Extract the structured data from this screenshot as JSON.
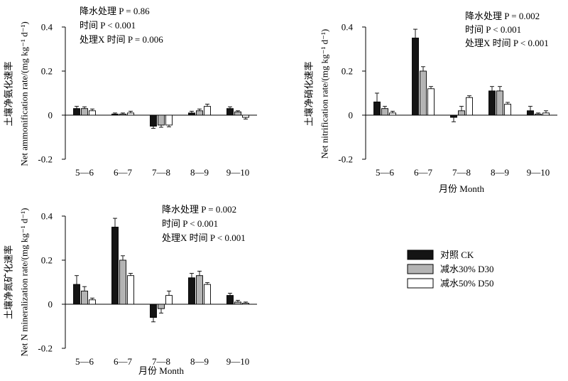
{
  "colors": {
    "ck": "#141414",
    "d30": "#b4b4b4",
    "d50": "#ffffff",
    "axis": "#000000"
  },
  "legend": [
    {
      "series": "ck",
      "label": "对照 CK"
    },
    {
      "series": "d30",
      "label": "减水30%  D30"
    },
    {
      "series": "d50",
      "label": "减水50%  D50"
    }
  ],
  "chart_data": [
    {
      "type": "bar",
      "ylabel": "土壤净氨化速率",
      "ylabel2": "Net ammonification rate/(mg kg⁻¹ d⁻¹)",
      "xlabel": "",
      "ylim": [
        -0.2,
        0.4
      ],
      "yticks": [
        "0.4",
        "0.2",
        "0",
        "-0.2"
      ],
      "categories": [
        "5—6",
        "6—7",
        "7—8",
        "8—9",
        "9—10"
      ],
      "series": [
        {
          "key": "ck",
          "values": [
            0.03,
            0.005,
            -0.05,
            0.01,
            0.03
          ],
          "errors": [
            0.01,
            0.005,
            0.01,
            0.008,
            0.008
          ]
        },
        {
          "key": "d30",
          "values": [
            0.03,
            0.005,
            -0.045,
            0.02,
            0.015
          ],
          "errors": [
            0.008,
            0.005,
            0.01,
            0.008,
            0.005
          ]
        },
        {
          "key": "d50",
          "values": [
            0.02,
            0.01,
            -0.045,
            0.04,
            -0.01
          ],
          "errors": [
            0.008,
            0.008,
            0.008,
            0.01,
            0.008
          ]
        }
      ],
      "annotations": [
        "降水处理 P = 0.86",
        "时间  P < 0.001",
        "处理X 时间  P = 0.006"
      ]
    },
    {
      "type": "bar",
      "ylabel": "土壤净硝化速率",
      "ylabel2": "Net nitrification rate/(mg kg⁻¹ d⁻¹)",
      "xlabel": "月份 Month",
      "ylim": [
        -0.2,
        0.4
      ],
      "yticks": [
        "0.4",
        "0.2",
        "0",
        "-0.2"
      ],
      "categories": [
        "5—6",
        "6—7",
        "7—8",
        "8—9",
        "9—10"
      ],
      "series": [
        {
          "key": "ck",
          "values": [
            0.06,
            0.35,
            -0.01,
            0.11,
            0.02
          ],
          "errors": [
            0.04,
            0.04,
            0.02,
            0.02,
            0.02
          ]
        },
        {
          "key": "d30",
          "values": [
            0.03,
            0.2,
            0.02,
            0.11,
            0.005
          ],
          "errors": [
            0.01,
            0.02,
            0.02,
            0.02,
            0.005
          ]
        },
        {
          "key": "d50",
          "values": [
            0.01,
            0.12,
            0.08,
            0.05,
            0.01
          ],
          "errors": [
            0.008,
            0.01,
            0.008,
            0.008,
            0.01
          ]
        }
      ],
      "annotations": [
        "降水处理 P = 0.002",
        "时间  P < 0.001",
        "处理X 时间  P < 0.001"
      ]
    },
    {
      "type": "bar",
      "ylabel": "土壤净氮矿化速率",
      "ylabel2": "Net N mineralization rate/(mg kg⁻¹ d⁻¹)",
      "xlabel": "月份 Month",
      "ylim": [
        -0.2,
        0.4
      ],
      "yticks": [
        "0.4",
        "0.2",
        "0",
        "-0.2"
      ],
      "categories": [
        "5—6",
        "6—7",
        "7—8",
        "8—9",
        "9—10"
      ],
      "series": [
        {
          "key": "ck",
          "values": [
            0.09,
            0.35,
            -0.06,
            0.12,
            0.04
          ],
          "errors": [
            0.04,
            0.04,
            0.02,
            0.02,
            0.01
          ]
        },
        {
          "key": "d30",
          "values": [
            0.06,
            0.2,
            -0.02,
            0.13,
            0.01
          ],
          "errors": [
            0.02,
            0.02,
            0.02,
            0.02,
            0.008
          ]
        },
        {
          "key": "d50",
          "values": [
            0.02,
            0.13,
            0.04,
            0.09,
            0.005
          ],
          "errors": [
            0.008,
            0.01,
            0.02,
            0.008,
            0.005
          ]
        }
      ],
      "annotations": [
        "降水处理 P = 0.002",
        "时间  P < 0.001",
        "处理X 时间  P < 0.001"
      ]
    }
  ]
}
